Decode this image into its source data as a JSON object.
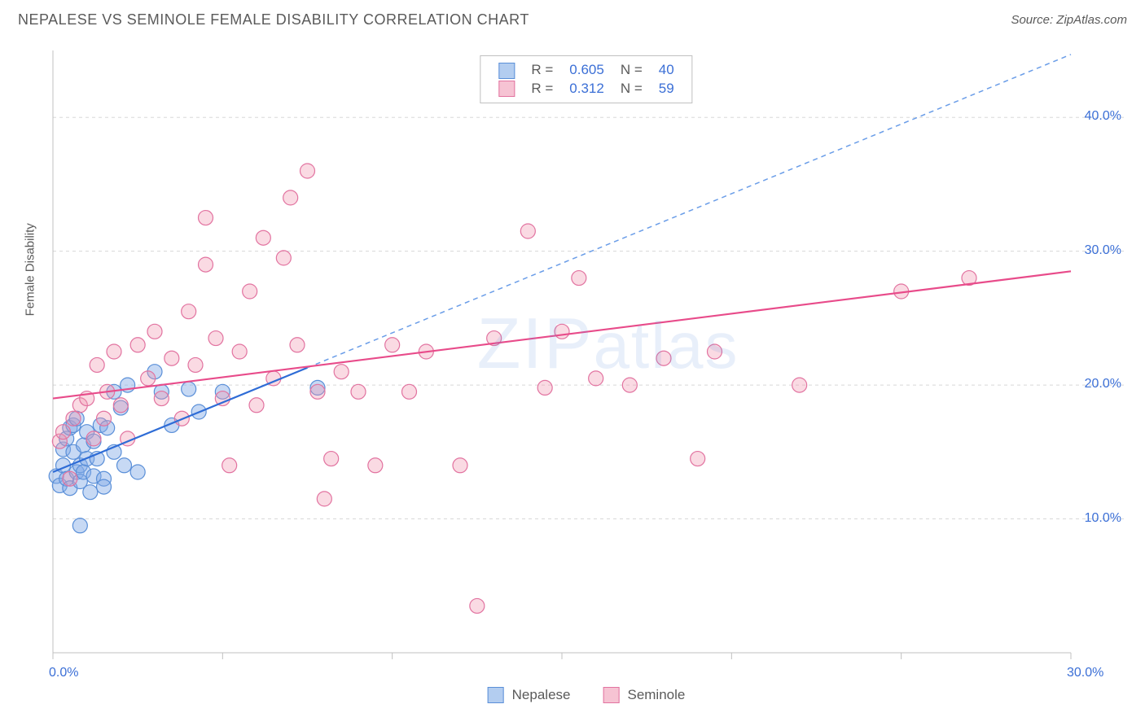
{
  "title": "NEPALESE VS SEMINOLE FEMALE DISABILITY CORRELATION CHART",
  "source": "Source: ZipAtlas.com",
  "y_axis_label": "Female Disability",
  "watermark": {
    "prefix": "ZIP",
    "suffix": "atlas"
  },
  "chart": {
    "type": "scatter",
    "x_domain": [
      0,
      30
    ],
    "y_domain": [
      0,
      45
    ],
    "x_ticks": [
      0,
      5,
      10,
      15,
      20,
      25,
      30
    ],
    "x_tick_labels": {
      "0": "0.0%",
      "30": "30.0%"
    },
    "y_ticks": [
      10,
      20,
      30,
      40
    ],
    "y_tick_labels": {
      "10": "10.0%",
      "20": "20.0%",
      "30": "30.0%",
      "40": "40.0%"
    },
    "grid_color": "#d8d8d8",
    "axis_color": "#c0c0c0",
    "background_color": "#ffffff",
    "tick_label_color": "#3b6fd6",
    "marker_radius": 9,
    "marker_stroke_width": 1.2,
    "trend_line_width": 2.2
  },
  "series": [
    {
      "name": "Nepalese",
      "fill_color": "rgba(130,170,230,0.45)",
      "stroke_color": "#5a8fd8",
      "swatch_fill": "#b3cdf0",
      "swatch_border": "#5a8fd8",
      "trend_color": "#2e6cd6",
      "trend_dashed_color": "#6a9de8",
      "R": "0.605",
      "N": "40",
      "trend": {
        "x1": 0,
        "y1": 13.5,
        "x2": 7.5,
        "y2": 21.3,
        "extend_to_x": 30,
        "dashed_after_x": 7.5
      },
      "points": [
        [
          0.1,
          13.2
        ],
        [
          0.2,
          12.5
        ],
        [
          0.3,
          14.0
        ],
        [
          0.3,
          15.2
        ],
        [
          0.4,
          13.0
        ],
        [
          0.4,
          16.0
        ],
        [
          0.5,
          12.3
        ],
        [
          0.5,
          16.8
        ],
        [
          0.6,
          15.0
        ],
        [
          0.6,
          17.0
        ],
        [
          0.7,
          13.5
        ],
        [
          0.7,
          17.5
        ],
        [
          0.8,
          14.0
        ],
        [
          0.8,
          12.8
        ],
        [
          0.9,
          15.5
        ],
        [
          0.9,
          13.5
        ],
        [
          1.0,
          14.5
        ],
        [
          1.0,
          16.5
        ],
        [
          1.1,
          12.0
        ],
        [
          1.2,
          13.2
        ],
        [
          1.2,
          15.8
        ],
        [
          1.3,
          14.5
        ],
        [
          1.4,
          17.0
        ],
        [
          1.5,
          13.0
        ],
        [
          1.5,
          12.4
        ],
        [
          1.6,
          16.8
        ],
        [
          1.8,
          15.0
        ],
        [
          2.0,
          18.3
        ],
        [
          2.1,
          14.0
        ],
        [
          2.2,
          20.0
        ],
        [
          2.5,
          13.5
        ],
        [
          3.0,
          21.0
        ],
        [
          3.2,
          19.5
        ],
        [
          3.5,
          17.0
        ],
        [
          4.0,
          19.7
        ],
        [
          4.3,
          18.0
        ],
        [
          5.0,
          19.5
        ],
        [
          7.8,
          19.8
        ],
        [
          0.8,
          9.5
        ],
        [
          1.8,
          19.5
        ]
      ]
    },
    {
      "name": "Seminole",
      "fill_color": "rgba(240,150,175,0.35)",
      "stroke_color": "#e273a0",
      "swatch_fill": "#f6c3d3",
      "swatch_border": "#e273a0",
      "trend_color": "#e84b8a",
      "R": "0.312",
      "N": "59",
      "trend": {
        "x1": 0,
        "y1": 19.0,
        "x2": 30,
        "y2": 28.5
      },
      "points": [
        [
          0.2,
          15.8
        ],
        [
          0.3,
          16.5
        ],
        [
          0.5,
          13.0
        ],
        [
          0.6,
          17.5
        ],
        [
          0.8,
          18.5
        ],
        [
          1.0,
          19.0
        ],
        [
          1.2,
          16.0
        ],
        [
          1.3,
          21.5
        ],
        [
          1.5,
          17.5
        ],
        [
          1.6,
          19.5
        ],
        [
          1.8,
          22.5
        ],
        [
          2.0,
          18.5
        ],
        [
          2.2,
          16.0
        ],
        [
          2.5,
          23.0
        ],
        [
          2.8,
          20.5
        ],
        [
          3.0,
          24.0
        ],
        [
          3.2,
          19.0
        ],
        [
          3.5,
          22.0
        ],
        [
          3.8,
          17.5
        ],
        [
          4.0,
          25.5
        ],
        [
          4.2,
          21.5
        ],
        [
          4.5,
          29.0
        ],
        [
          4.8,
          23.5
        ],
        [
          5.0,
          19.0
        ],
        [
          5.2,
          14.0
        ],
        [
          5.5,
          22.5
        ],
        [
          5.8,
          27.0
        ],
        [
          6.0,
          18.5
        ],
        [
          6.2,
          31.0
        ],
        [
          6.5,
          20.5
        ],
        [
          6.8,
          29.5
        ],
        [
          7.0,
          34.0
        ],
        [
          7.2,
          23.0
        ],
        [
          7.5,
          36.0
        ],
        [
          7.8,
          19.5
        ],
        [
          8.0,
          11.5
        ],
        [
          8.2,
          14.5
        ],
        [
          8.5,
          21.0
        ],
        [
          9.0,
          19.5
        ],
        [
          9.5,
          14.0
        ],
        [
          10.0,
          23.0
        ],
        [
          10.5,
          19.5
        ],
        [
          11.0,
          22.5
        ],
        [
          12.0,
          14.0
        ],
        [
          12.5,
          3.5
        ],
        [
          13.0,
          23.5
        ],
        [
          14.0,
          31.5
        ],
        [
          14.5,
          19.8
        ],
        [
          15.0,
          24.0
        ],
        [
          15.5,
          28.0
        ],
        [
          16.0,
          20.5
        ],
        [
          17.0,
          20.0
        ],
        [
          18.0,
          22.0
        ],
        [
          19.0,
          14.5
        ],
        [
          19.5,
          22.5
        ],
        [
          22.0,
          20.0
        ],
        [
          25.0,
          27.0
        ],
        [
          27.0,
          28.0
        ],
        [
          4.5,
          32.5
        ]
      ]
    }
  ],
  "legend_bottom": [
    {
      "label": "Nepalese",
      "swatch_fill": "#b3cdf0",
      "swatch_border": "#5a8fd8"
    },
    {
      "label": "Seminole",
      "swatch_fill": "#f6c3d3",
      "swatch_border": "#e273a0"
    }
  ]
}
